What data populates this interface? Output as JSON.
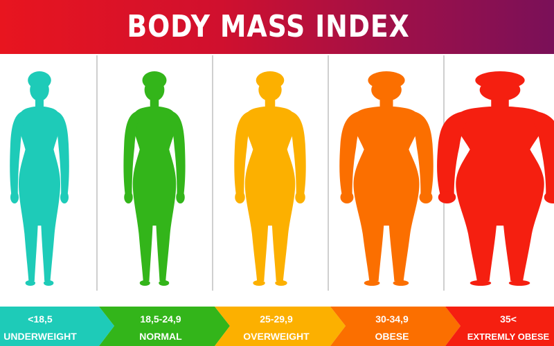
{
  "title": "BODY MASS INDEX",
  "categories": [
    {
      "range": "<18,5",
      "label": "UNDERWEIGHT",
      "color": "#1ecbb8"
    },
    {
      "range": "18,5-24,9",
      "label": "NORMAL",
      "color": "#33b51a"
    },
    {
      "range": "25-29,9",
      "label": "OVERWEIGHT",
      "color": "#fcb000"
    },
    {
      "range": "30-34,9",
      "label": "OBESE",
      "color": "#fb6f00"
    },
    {
      "range": "35<",
      "label": "EXTREMLY OBESE",
      "color": "#f51f10"
    }
  ]
}
